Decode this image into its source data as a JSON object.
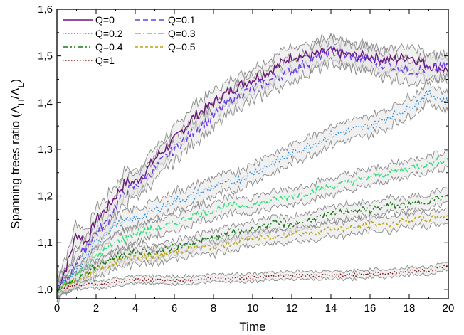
{
  "chart_data": {
    "type": "line",
    "xlabel": "Time",
    "ylabel": {
      "main": "Spanning trees ratio (Λ",
      "sub1": "H",
      "mid": "/Λ",
      "sub2": "L",
      "end": ")"
    },
    "xlim": [
      0,
      20
    ],
    "ylim": [
      0.98,
      1.6
    ],
    "x_ticks": [
      0,
      2,
      4,
      6,
      8,
      10,
      12,
      14,
      16,
      18,
      20
    ],
    "x_tick_labels": [
      "0",
      "2",
      "4",
      "6",
      "8",
      "10",
      "12",
      "14",
      "16",
      "18",
      "20"
    ],
    "y_ticks": [
      1.0,
      1.1,
      1.2,
      1.3,
      1.4,
      1.5,
      1.6
    ],
    "y_tick_labels": [
      "1,0",
      "1,1",
      "1,2",
      "1,3",
      "1,4",
      "1,5",
      "1,6"
    ],
    "grid": false,
    "legend_position": "top-left",
    "band_color": "#e4e4e4",
    "band_edge_color": "#8a8a8a",
    "series": [
      {
        "name": "Q=0",
        "color": "#6b1a7a",
        "dash": "solid",
        "x": [
          0,
          0.5,
          1,
          1.5,
          2,
          2.5,
          3,
          3.5,
          4,
          4.5,
          5,
          6,
          7,
          8,
          9,
          10,
          11,
          12,
          13,
          14,
          15,
          16,
          17,
          18,
          19,
          20
        ],
        "values": [
          1.0,
          1.05,
          1.12,
          1.1,
          1.15,
          1.17,
          1.2,
          1.23,
          1.23,
          1.25,
          1.28,
          1.32,
          1.37,
          1.4,
          1.43,
          1.45,
          1.47,
          1.5,
          1.5,
          1.51,
          1.5,
          1.5,
          1.49,
          1.5,
          1.48,
          1.47
        ],
        "band": 0.025
      },
      {
        "name": "Q=0.1",
        "color": "#6b3ee8",
        "dash": "dashed",
        "x": [
          0,
          0.5,
          1,
          1.5,
          2,
          2.5,
          3,
          3.5,
          4,
          4.5,
          5,
          6,
          7,
          8,
          9,
          10,
          11,
          12,
          13,
          14,
          15,
          16,
          17,
          18,
          19,
          20
        ],
        "values": [
          1.0,
          1.02,
          1.06,
          1.09,
          1.12,
          1.14,
          1.18,
          1.21,
          1.22,
          1.24,
          1.26,
          1.3,
          1.34,
          1.37,
          1.41,
          1.43,
          1.45,
          1.47,
          1.49,
          1.51,
          1.5,
          1.49,
          1.48,
          1.47,
          1.47,
          1.48
        ],
        "band": 0.025
      },
      {
        "name": "Q=0.2",
        "color": "#2d8ee0",
        "dash": "dotted",
        "x": [
          0,
          1,
          2,
          3,
          4,
          5,
          6,
          7,
          8,
          9,
          10,
          11,
          12,
          13,
          14,
          15,
          16,
          17,
          18,
          19,
          20
        ],
        "values": [
          1.0,
          1.04,
          1.1,
          1.14,
          1.15,
          1.17,
          1.19,
          1.2,
          1.22,
          1.23,
          1.25,
          1.27,
          1.29,
          1.31,
          1.33,
          1.34,
          1.35,
          1.37,
          1.39,
          1.42,
          1.4
        ],
        "band": 0.02
      },
      {
        "name": "Q=0.3",
        "color": "#2fe07a",
        "dash": "dashdot",
        "x": [
          0,
          1,
          2,
          3,
          4,
          5,
          6,
          7,
          8,
          9,
          10,
          11,
          12,
          13,
          14,
          15,
          16,
          17,
          18,
          19,
          20
        ],
        "values": [
          1.0,
          1.03,
          1.07,
          1.1,
          1.12,
          1.13,
          1.14,
          1.16,
          1.17,
          1.18,
          1.18,
          1.19,
          1.2,
          1.21,
          1.22,
          1.23,
          1.24,
          1.25,
          1.26,
          1.27,
          1.28
        ],
        "band": 0.017
      },
      {
        "name": "Q=0.4",
        "color": "#1a7a1a",
        "dash": "dashdotdot",
        "x": [
          0,
          1,
          2,
          3,
          4,
          5,
          6,
          7,
          8,
          9,
          10,
          11,
          12,
          13,
          14,
          15,
          16,
          17,
          18,
          19,
          20
        ],
        "values": [
          1.0,
          1.02,
          1.05,
          1.07,
          1.08,
          1.08,
          1.09,
          1.1,
          1.11,
          1.12,
          1.13,
          1.14,
          1.14,
          1.15,
          1.16,
          1.17,
          1.17,
          1.18,
          1.18,
          1.19,
          1.2
        ],
        "band": 0.015
      },
      {
        "name": "Q=0.5",
        "color": "#b9a414",
        "dash": "shortdash",
        "x": [
          0,
          1,
          2,
          3,
          4,
          5,
          6,
          7,
          8,
          9,
          10,
          11,
          12,
          13,
          14,
          15,
          16,
          17,
          18,
          19,
          20
        ],
        "values": [
          1.0,
          1.02,
          1.04,
          1.06,
          1.07,
          1.07,
          1.08,
          1.09,
          1.09,
          1.1,
          1.11,
          1.11,
          1.12,
          1.12,
          1.13,
          1.13,
          1.14,
          1.14,
          1.15,
          1.15,
          1.16
        ],
        "band": 0.015
      },
      {
        "name": "Q=1",
        "color": "#7a1010",
        "dash": "dotted",
        "x": [
          0,
          1,
          2,
          3,
          4,
          5,
          6,
          7,
          8,
          9,
          10,
          11,
          12,
          13,
          14,
          15,
          16,
          17,
          18,
          19,
          20
        ],
        "values": [
          1.0,
          1.01,
          1.01,
          1.015,
          1.02,
          1.02,
          1.02,
          1.02,
          1.025,
          1.025,
          1.025,
          1.03,
          1.03,
          1.03,
          1.03,
          1.03,
          1.035,
          1.035,
          1.04,
          1.04,
          1.05
        ],
        "band": 0.008
      }
    ]
  }
}
